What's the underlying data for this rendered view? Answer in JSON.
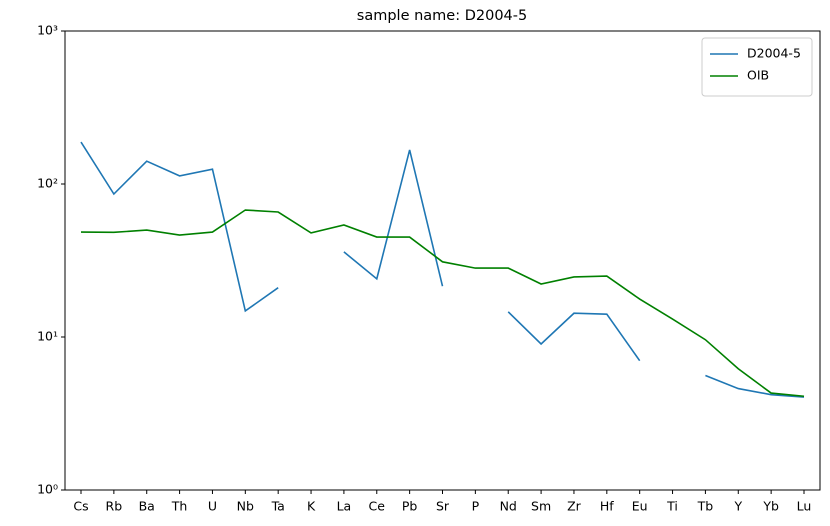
{
  "chart_data": {
    "type": "line",
    "title": "sample name: D2004-5",
    "categories": [
      "Cs",
      "Rb",
      "Ba",
      "Th",
      "U",
      "Nb",
      "Ta",
      "K",
      "La",
      "Ce",
      "Pb",
      "Sr",
      "P",
      "Nd",
      "Sm",
      "Zr",
      "Hf",
      "Eu",
      "Ti",
      "Tb",
      "Y",
      "Yb",
      "Lu"
    ],
    "series": [
      {
        "name": "D2004-5",
        "color": "#1f77b4",
        "values": [
          188,
          86,
          141,
          113,
          125,
          14.8,
          21,
          null,
          36,
          24,
          167,
          21.5,
          null,
          14.6,
          9.0,
          14.3,
          14.1,
          7.0,
          null,
          5.6,
          4.6,
          4.2,
          4.05
        ]
      },
      {
        "name": "OIB",
        "color": "#008000",
        "values": [
          48.5,
          48.3,
          50,
          46.4,
          48.5,
          67.6,
          65.6,
          47.9,
          54,
          45,
          45,
          31,
          28.2,
          28.2,
          22.2,
          24.7,
          25,
          17.7,
          13.1,
          9.6,
          6.2,
          4.3,
          4.1
        ]
      }
    ],
    "log_y": true,
    "ylim": [
      1,
      1000
    ],
    "yticks": [
      {
        "value": 1,
        "label": "10⁰"
      },
      {
        "value": 10,
        "label": "10¹"
      },
      {
        "value": 100,
        "label": "10²"
      },
      {
        "value": 1000,
        "label": "10³"
      }
    ],
    "legend": "upper right"
  }
}
